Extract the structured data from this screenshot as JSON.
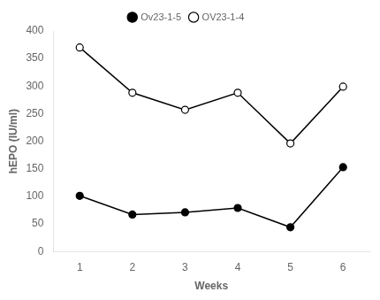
{
  "chart_data": {
    "type": "line",
    "x": [
      1,
      2,
      3,
      4,
      5,
      6
    ],
    "series": [
      {
        "name": "Ov23-1-5",
        "color": "#000000",
        "marker": "circle",
        "values": [
          101,
          67,
          71,
          79,
          44,
          153
        ]
      },
      {
        "name": "OV23-1-4",
        "color": "#000000",
        "marker": "open_circle",
        "values": [
          370,
          288,
          257,
          288,
          196,
          299
        ]
      }
    ],
    "xlabel": "Weeks",
    "ylabel": "hEPO (IU/ml)",
    "xlim": [
      0.5,
      6.5
    ],
    "ylim": [
      0,
      400
    ],
    "xticks": [
      1,
      2,
      3,
      4,
      5,
      6
    ],
    "yticks": [
      0,
      50,
      100,
      150,
      200,
      250,
      300,
      350,
      400
    ],
    "grid": false,
    "legend": "top"
  }
}
